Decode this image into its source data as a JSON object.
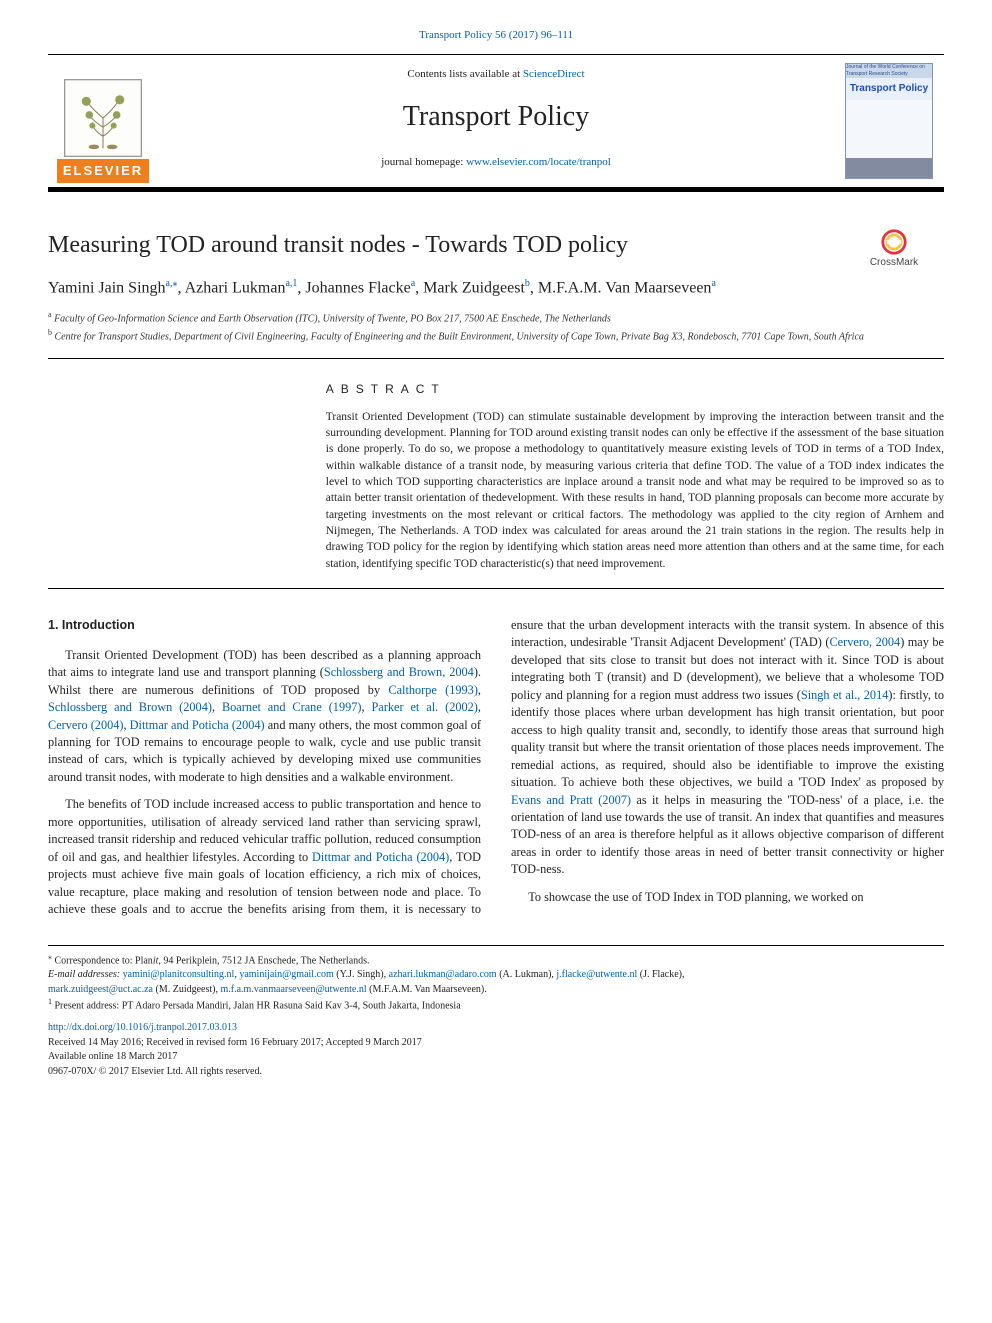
{
  "header": {
    "journal_ref_top": "Transport Policy 56 (2017) 96–111",
    "contents_prefix": "Contents lists available at ",
    "contents_link": "ScienceDirect",
    "journal_name": "Transport Policy",
    "homepage_prefix": "journal homepage: ",
    "homepage_url": "www.elsevier.com/locate/tranpol",
    "publisher_word": "ELSEVIER",
    "cover_title": "Transport Policy",
    "cover_topstrip": "Journal of the World Conference on Transport Research Society"
  },
  "crossmark": {
    "label": "CrossMark"
  },
  "article": {
    "title": "Measuring TOD around transit nodes - Towards TOD policy",
    "authors_html": "Yamini Jain Singh|a,*|, Azhari Lukman|a,1|, Johannes Flacke|a|, Mark Zuidgeest|b|, M.F.A.M. Van Maarseveen|a|",
    "authors": [
      {
        "name": "Yamini Jain Singh",
        "sup": "a,⁎"
      },
      {
        "name": "Azhari Lukman",
        "sup": "a,1"
      },
      {
        "name": "Johannes Flacke",
        "sup": "a"
      },
      {
        "name": "Mark Zuidgeest",
        "sup": "b"
      },
      {
        "name": "M.F.A.M. Van Maarseveen",
        "sup": "a"
      }
    ],
    "affiliations": [
      {
        "sup": "a",
        "text": "Faculty of Geo-Information Science and Earth Observation (ITC), University of Twente, PO Box 217, 7500 AE Enschede, The Netherlands"
      },
      {
        "sup": "b",
        "text": "Centre for Transport Studies, Department of Civil Engineering, Faculty of Engineering and the Built Environment, University of Cape Town, Private Bag X3, Rondebosch, 7701 Cape Town, South Africa"
      }
    ]
  },
  "abstract": {
    "heading": "ABSTRACT",
    "text": "Transit Oriented Development (TOD) can stimulate sustainable development by improving the interaction between transit and the surrounding development. Planning for TOD around existing transit nodes can only be effective if the assessment of the base situation is done properly. To do so, we propose a methodology to quantitatively measure existing levels of TOD in terms of a TOD Index, within walkable distance of a transit node, by measuring various criteria that define TOD. The value of a TOD index indicates the level to which TOD supporting characteristics are inplace around a transit node and what may be required to be improved so as to attain better transit orientation of thedevelopment. With these results in hand, TOD planning proposals can become more accurate by targeting investments on the most relevant or critical factors. The methodology was applied to the city region of Arnhem and Nijmegen, The Netherlands. A TOD index was calculated for areas around the 21 train stations in the region. The results help in drawing TOD policy for the region by identifying which station areas need more attention than others and at the same time, for each station, identifying specific TOD characteristic(s) that need improvement."
  },
  "body": {
    "section_heading": "1. Introduction",
    "p1a": "Transit Oriented Development (TOD) has been described as a planning approach that aims to integrate land use and transport planning (",
    "p1_ref1": "Schlossberg and Brown, 2004",
    "p1b": "). Whilst there are numerous definitions of TOD proposed by ",
    "p1_ref2": "Calthorpe (1993)",
    "p1c": ", ",
    "p1_ref3": "Schlossberg and Brown (2004)",
    "p1d": ", ",
    "p1_ref4": "Boarnet and Crane (1997)",
    "p1e": ", ",
    "p1_ref5": "Parker et al. (2002)",
    "p1f": ", ",
    "p1_ref6": "Cervero (2004)",
    "p1g": ", ",
    "p1_ref7": "Dittmar and Poticha (2004)",
    "p1h": " and many others, the most common goal of planning for TOD remains to encourage people to walk, cycle and use public transit instead of cars, which is typically achieved by developing mixed use communities around transit nodes, with moderate to high densities and a walkable environment.",
    "p2a": "The benefits of TOD include increased access to public transportation and hence to more opportunities, utilisation of already serviced land rather than servicing sprawl, increased transit ridership and reduced vehicular traffic pollution, reduced consumption of oil and gas, and healthier lifestyles. According to ",
    "p2_ref1": "Dittmar and Poticha (2004)",
    "p2b": ", TOD projects must achieve five main goals of location efficiency, a rich mix of choices, value recapture, place making and resolution of tension between node and place. To achieve these goals and to accrue the benefits arising from them, it is necessary to ensure that the urban development interacts with the transit system. In absence of this interaction, undesirable 'Transit Adjacent Development' (TAD) (",
    "p2_ref2": "Cervero, 2004",
    "p2c": ") may be developed that sits close to transit but does not interact with it. Since TOD is about integrating both T (transit) and D (development), we believe that a wholesome TOD policy and planning for a region must address two issues (",
    "p2_ref3": "Singh et al., 2014",
    "p2d": "): firstly, to identify those places where urban development has high transit orientation, but poor access to high quality transit and, secondly, to identify those areas that surround high quality transit but where the transit orientation of those places needs improvement. The remedial actions, as required, should also be identifiable to improve the existing situation. To achieve both these objectives, we build a 'TOD Index' as proposed by ",
    "p2_ref4": "Evans and Pratt (2007)",
    "p2e": " as it helps in measuring the 'TOD-ness' of a place, i.e. the orientation of land use towards the use of transit. An index that quantifies and measures TOD-ness of an area is therefore helpful as it allows objective comparison of different areas in order to identify those areas in need of better transit connectivity or higher TOD-ness.",
    "p3": "To showcase the use of TOD Index in TOD planning, we worked on"
  },
  "footnotes": {
    "corr_label": "⁎",
    "corr_prefix": "Correspondence to: Plan",
    "corr_italic": "it",
    "corr_rest": ", 94 Perikplein, 7512 JA Enschede, The Netherlands.",
    "email_label": "E-mail addresses: ",
    "emails": [
      {
        "addr": "yamini@planitconsulting.nl",
        "sep": ", "
      },
      {
        "addr": "yaminijain@gmail.com",
        "who": " (Y.J. Singh), ",
        "sep": ""
      },
      {
        "addr": "azhari.lukman@adaro.com",
        "who": " (A. Lukman), ",
        "sep": ""
      },
      {
        "addr": "j.flacke@utwente.nl",
        "who": " (J. Flacke),",
        "sep": ""
      }
    ],
    "emails_line2": [
      {
        "addr": "mark.zuidgeest@uct.ac.za",
        "who": " (M. Zuidgeest), ",
        "sep": ""
      },
      {
        "addr": "m.f.a.m.vanmaarseveen@utwente.nl",
        "who": " (M.F.A.M. Van Maarseveen).",
        "sep": ""
      }
    ],
    "note1_sup": "1",
    "note1": " Present address: PT Adaro Persada Mandiri, Jalan HR Rasuna Said Kav 3-4, South Jakarta, Indonesia",
    "doi": "http://dx.doi.org/10.1016/j.tranpol.2017.03.013",
    "history": "Received 14 May 2016; Received in revised form 16 February 2017; Accepted 9 March 2017",
    "online": "Available online 18 March 2017",
    "issn": "0967-070X/ © 2017 Elsevier Ltd. All rights reserved."
  },
  "colors": {
    "link": "#0060aa",
    "elsevier_orange": "#ee7f1a",
    "cover_border": "#7d97bb",
    "cover_bg": "#eaf0f8",
    "cover_title": "#1d4db0",
    "crossmark_ring_outer": "#e3353b",
    "crossmark_ring_inner": "#f6c445"
  }
}
